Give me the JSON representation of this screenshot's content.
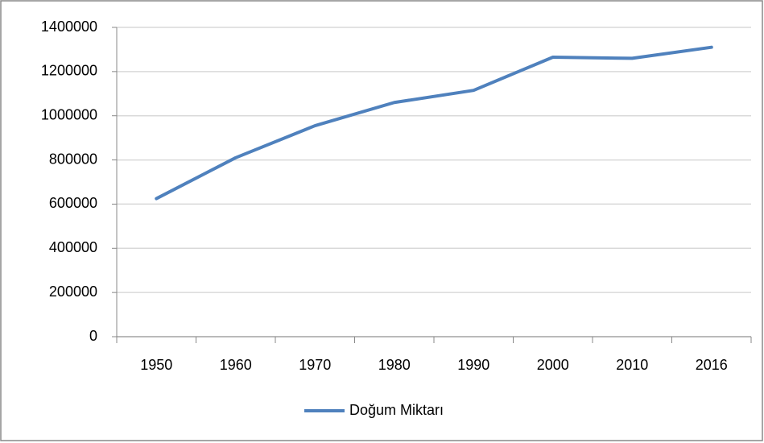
{
  "chart_data": {
    "type": "line",
    "categories": [
      "1950",
      "1960",
      "1970",
      "1980",
      "1990",
      "2000",
      "2010",
      "2016"
    ],
    "series": [
      {
        "name": "Doğum Miktarı",
        "color": "#4f81bd",
        "values": [
          625000,
          810000,
          955000,
          1060000,
          1115000,
          1265000,
          1260000,
          1310000
        ]
      }
    ],
    "ylim": [
      0,
      1400000
    ],
    "yticks": [
      0,
      200000,
      400000,
      600000,
      800000,
      1000000,
      1200000,
      1400000
    ],
    "grid": true,
    "legend": "bottom"
  }
}
